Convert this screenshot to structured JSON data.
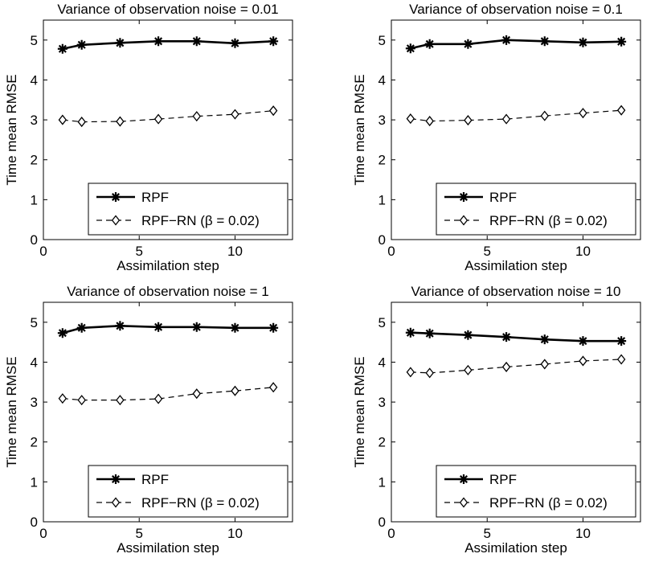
{
  "chart_data": [
    {
      "type": "line",
      "title": "Variance of observation noise = 0.01",
      "xlabel": "Assimilation step",
      "ylabel": "Time mean RMSE",
      "xlim": [
        0,
        13
      ],
      "ylim": [
        0,
        5.5
      ],
      "xticks": [
        0,
        5,
        10
      ],
      "yticks": [
        0,
        1,
        2,
        3,
        4,
        5
      ],
      "x": [
        1,
        2,
        4,
        6,
        8,
        10,
        12
      ],
      "series": [
        {
          "name": "RPF",
          "style": "solid",
          "marker": "asterisk",
          "values": [
            4.78,
            4.88,
            4.93,
            4.97,
            4.97,
            4.92,
            4.97
          ]
        },
        {
          "name": "RPF−RN (β = 0.02)",
          "style": "dashed",
          "marker": "diamond",
          "values": [
            3.0,
            2.95,
            2.96,
            3.02,
            3.09,
            3.14,
            3.23
          ]
        }
      ],
      "legend": "bottom-right"
    },
    {
      "type": "line",
      "title": "Variance of observation noise = 0.1",
      "xlabel": "Assimilation step",
      "ylabel": "Time mean RMSE",
      "xlim": [
        0,
        13
      ],
      "ylim": [
        0,
        5.5
      ],
      "xticks": [
        0,
        5,
        10
      ],
      "yticks": [
        0,
        1,
        2,
        3,
        4,
        5
      ],
      "x": [
        1,
        2,
        4,
        6,
        8,
        10,
        12
      ],
      "series": [
        {
          "name": "RPF",
          "style": "solid",
          "marker": "asterisk",
          "values": [
            4.79,
            4.9,
            4.9,
            5.0,
            4.97,
            4.94,
            4.96
          ]
        },
        {
          "name": "RPF−RN (β = 0.02)",
          "style": "dashed",
          "marker": "diamond",
          "values": [
            3.03,
            2.97,
            2.99,
            3.02,
            3.1,
            3.17,
            3.24
          ]
        }
      ],
      "legend": "bottom-right"
    },
    {
      "type": "line",
      "title": "Variance of observation noise = 1",
      "xlabel": "Assimilation step",
      "ylabel": "Time mean RMSE",
      "xlim": [
        0,
        13
      ],
      "ylim": [
        0,
        5.5
      ],
      "xticks": [
        0,
        5,
        10
      ],
      "yticks": [
        0,
        1,
        2,
        3,
        4,
        5
      ],
      "x": [
        1,
        2,
        4,
        6,
        8,
        10,
        12
      ],
      "series": [
        {
          "name": "RPF",
          "style": "solid",
          "marker": "asterisk",
          "values": [
            4.73,
            4.86,
            4.91,
            4.88,
            4.88,
            4.86,
            4.86
          ]
        },
        {
          "name": "RPF−RN (β = 0.02)",
          "style": "dashed",
          "marker": "diamond",
          "values": [
            3.09,
            3.05,
            3.05,
            3.08,
            3.21,
            3.28,
            3.37
          ]
        }
      ],
      "legend": "bottom-right"
    },
    {
      "type": "line",
      "title": "Variance of observation noise = 10",
      "xlabel": "Assimilation step",
      "ylabel": "Time mean RMSE",
      "xlim": [
        0,
        13
      ],
      "ylim": [
        0,
        5.5
      ],
      "xticks": [
        0,
        5,
        10
      ],
      "yticks": [
        0,
        1,
        2,
        3,
        4,
        5
      ],
      "x": [
        1,
        2,
        4,
        6,
        8,
        10,
        12
      ],
      "series": [
        {
          "name": "RPF",
          "style": "solid",
          "marker": "asterisk",
          "values": [
            4.74,
            4.72,
            4.68,
            4.63,
            4.57,
            4.53,
            4.53
          ]
        },
        {
          "name": "RPF−RN (β = 0.02)",
          "style": "dashed",
          "marker": "diamond",
          "values": [
            3.75,
            3.73,
            3.8,
            3.88,
            3.95,
            4.03,
            4.07
          ]
        }
      ],
      "legend": "bottom-right"
    }
  ]
}
